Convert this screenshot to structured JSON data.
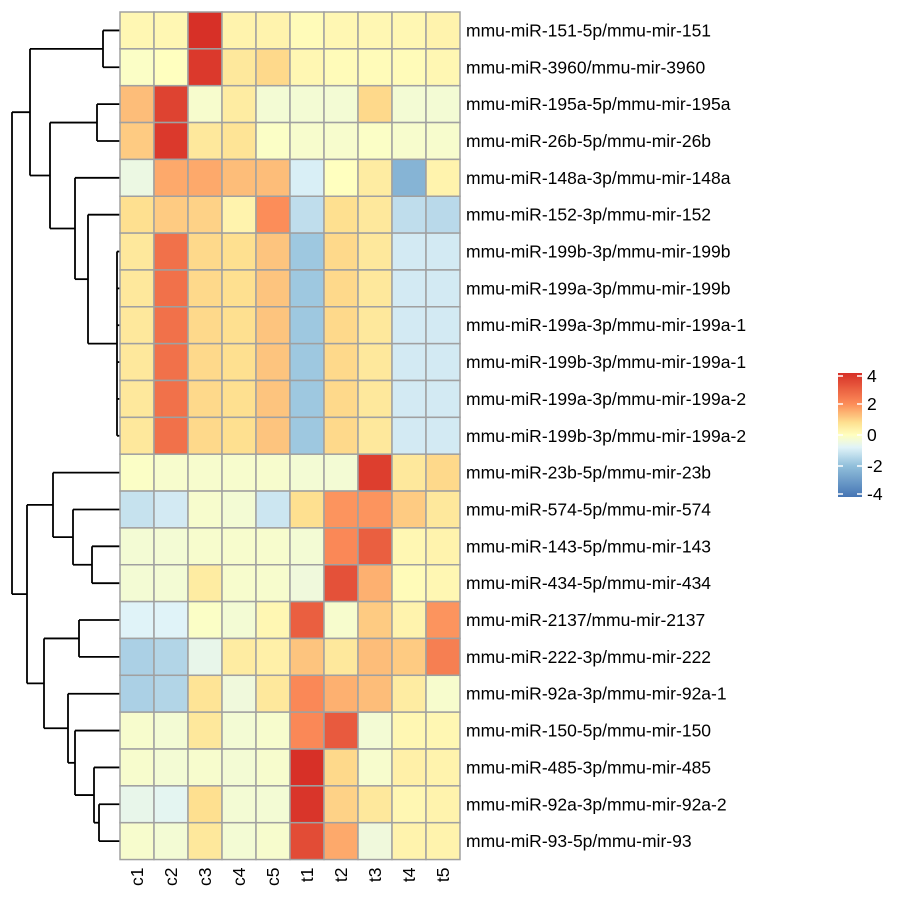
{
  "chart_data": {
    "type": "heatmap",
    "title": "",
    "columns": [
      "c1",
      "c2",
      "c3",
      "c4",
      "c5",
      "t1",
      "t2",
      "t3",
      "t4",
      "t5"
    ],
    "rows": [
      "mmu-miR-151-5p/mmu-mir-151",
      "mmu-miR-3960/mmu-mir-3960",
      "mmu-miR-195a-5p/mmu-mir-195a",
      "mmu-miR-26b-5p/mmu-mir-26b",
      "mmu-miR-148a-3p/mmu-mir-148a",
      "mmu-miR-152-3p/mmu-mir-152",
      "mmu-miR-199b-3p/mmu-mir-199b",
      "mmu-miR-199a-3p/mmu-mir-199b",
      "mmu-miR-199a-3p/mmu-mir-199a-1",
      "mmu-miR-199b-3p/mmu-mir-199a-1",
      "mmu-miR-199a-3p/mmu-mir-199a-2",
      "mmu-miR-199b-3p/mmu-mir-199a-2",
      "mmu-miR-23b-5p/mmu-mir-23b",
      "mmu-miR-574-5p/mmu-mir-574",
      "mmu-miR-143-5p/mmu-mir-143",
      "mmu-miR-434-5p/mmu-mir-434",
      "mmu-miR-2137/mmu-mir-2137",
      "mmu-miR-222-3p/mmu-mir-222",
      "mmu-miR-92a-3p/mmu-mir-92a-1",
      "mmu-miR-150-5p/mmu-mir-150",
      "mmu-miR-485-3p/mmu-mir-485",
      "mmu-miR-92a-3p/mmu-mir-92a-2",
      "mmu-miR-93-5p/mmu-mir-93"
    ],
    "values": [
      [
        0.2,
        0.2,
        4.0,
        0.3,
        0.3,
        0.1,
        0.2,
        0.2,
        0.2,
        0.3
      ],
      [
        -0.1,
        0.0,
        3.8,
        0.6,
        0.9,
        0.2,
        0.1,
        0.1,
        0.1,
        0.2
      ],
      [
        1.3,
        3.6,
        -0.2,
        0.5,
        -0.3,
        -0.3,
        -0.3,
        0.9,
        -0.3,
        -0.3
      ],
      [
        1.1,
        3.8,
        0.6,
        0.7,
        -0.1,
        -0.2,
        -0.2,
        -0.1,
        -0.2,
        -0.2
      ],
      [
        -0.5,
        1.6,
        1.6,
        1.3,
        1.3,
        -0.9,
        0.0,
        0.5,
        -2.3,
        0.3
      ],
      [
        0.8,
        1.1,
        1.0,
        0.3,
        2.0,
        -1.3,
        0.8,
        0.6,
        -1.3,
        -1.4
      ],
      [
        0.6,
        2.6,
        0.9,
        0.8,
        1.2,
        -1.8,
        0.9,
        0.6,
        -1.0,
        -1.0
      ],
      [
        0.6,
        2.6,
        0.9,
        0.8,
        1.2,
        -1.8,
        0.9,
        0.6,
        -1.0,
        -1.0
      ],
      [
        0.6,
        2.6,
        0.9,
        0.8,
        1.2,
        -1.8,
        0.9,
        0.6,
        -1.0,
        -1.0
      ],
      [
        0.6,
        2.6,
        0.9,
        0.8,
        1.2,
        -1.8,
        0.9,
        0.6,
        -1.0,
        -1.0
      ],
      [
        0.6,
        2.6,
        0.9,
        0.8,
        1.2,
        -1.8,
        0.9,
        0.6,
        -1.0,
        -1.0
      ],
      [
        0.6,
        2.6,
        0.9,
        0.8,
        1.2,
        -1.8,
        0.9,
        0.6,
        -1.0,
        -1.0
      ],
      [
        -0.1,
        -0.2,
        -0.2,
        -0.2,
        -0.2,
        -0.3,
        -0.3,
        3.7,
        0.6,
        0.9
      ],
      [
        -1.2,
        -1.0,
        -0.2,
        -0.3,
        -1.1,
        0.8,
        1.9,
        1.9,
        1.1,
        0.6
      ],
      [
        -0.3,
        -0.3,
        -0.2,
        -0.2,
        -0.2,
        -0.3,
        2.1,
        3.0,
        0.2,
        0.3
      ],
      [
        -0.3,
        -0.3,
        0.5,
        -0.2,
        -0.2,
        -0.4,
        3.3,
        1.5,
        0.1,
        0.2
      ],
      [
        -0.8,
        -0.8,
        -0.1,
        -0.3,
        0.2,
        3.0,
        -0.2,
        1.1,
        0.3,
        1.9
      ],
      [
        -1.6,
        -1.5,
        -0.6,
        0.5,
        0.4,
        1.2,
        0.6,
        1.3,
        1.1,
        2.3
      ],
      [
        -1.6,
        -1.5,
        0.7,
        -0.4,
        0.6,
        2.1,
        1.5,
        1.3,
        0.5,
        -0.2
      ],
      [
        -0.2,
        -0.3,
        0.6,
        -0.3,
        -0.2,
        2.1,
        3.1,
        -0.3,
        0.2,
        0.2
      ],
      [
        -0.2,
        -0.3,
        -0.2,
        -0.3,
        -0.2,
        4.0,
        0.9,
        -0.2,
        0.4,
        0.3
      ],
      [
        -0.6,
        -0.7,
        0.8,
        -0.3,
        -0.3,
        3.9,
        1.0,
        0.6,
        0.2,
        0.3
      ],
      [
        -0.2,
        -0.3,
        0.6,
        -0.3,
        -0.2,
        3.4,
        1.6,
        -0.4,
        0.3,
        0.3
      ]
    ],
    "row_dendrogram": "(((151,3960),((195a,26b),(148a,(152,(199b,199a_b,199a-1a,199a-1b,199a-2a,199a-2b))))),((23b,(574,(143,434))),((2137,222),(92a-1,(150,(485,(92a-2,93)))))))",
    "color_scale": {
      "min": -4,
      "max": 4,
      "colors": [
        "#4575b4",
        "#91bfdb",
        "#e0f3f8",
        "#ffffbf",
        "#fee090",
        "#fc8d59",
        "#d73027"
      ],
      "stops": [
        -4,
        -2,
        -0.8,
        0,
        0.8,
        2,
        4
      ]
    },
    "legend": {
      "ticks": [
        "4",
        "2",
        "0",
        "-2",
        "-4"
      ],
      "tick_values": [
        4,
        2,
        0,
        -2,
        -4
      ],
      "placement": "right"
    },
    "cell_border_color": "#a0a0a0"
  }
}
